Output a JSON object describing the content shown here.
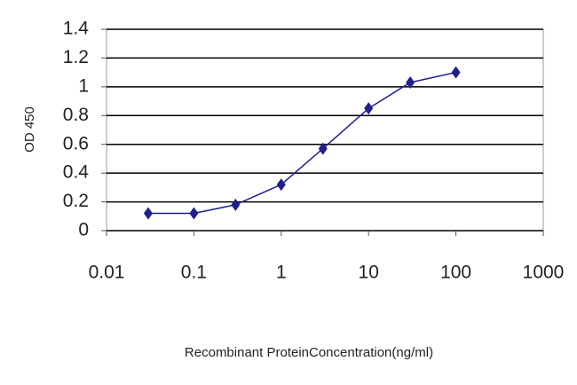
{
  "chart_data": {
    "type": "line",
    "x_label": "Recombinant ProteinConcentration(ng/ml)",
    "y_label": "OD 450",
    "x": [
      0.03,
      0.1,
      0.3,
      1,
      3,
      10,
      30,
      100
    ],
    "values": [
      0.12,
      0.12,
      0.18,
      0.32,
      0.57,
      0.85,
      1.03,
      1.1
    ],
    "color": "#1f1f8f",
    "x_log": true,
    "xlim": [
      0.01,
      1000
    ],
    "xticks": [
      0.01,
      0.1,
      1,
      10,
      100,
      1000
    ],
    "ylim": [
      0,
      1.4
    ],
    "yticks": [
      0,
      0.2,
      0.4,
      0.6,
      0.8,
      1,
      1.2,
      1.4
    ],
    "grid": true
  }
}
